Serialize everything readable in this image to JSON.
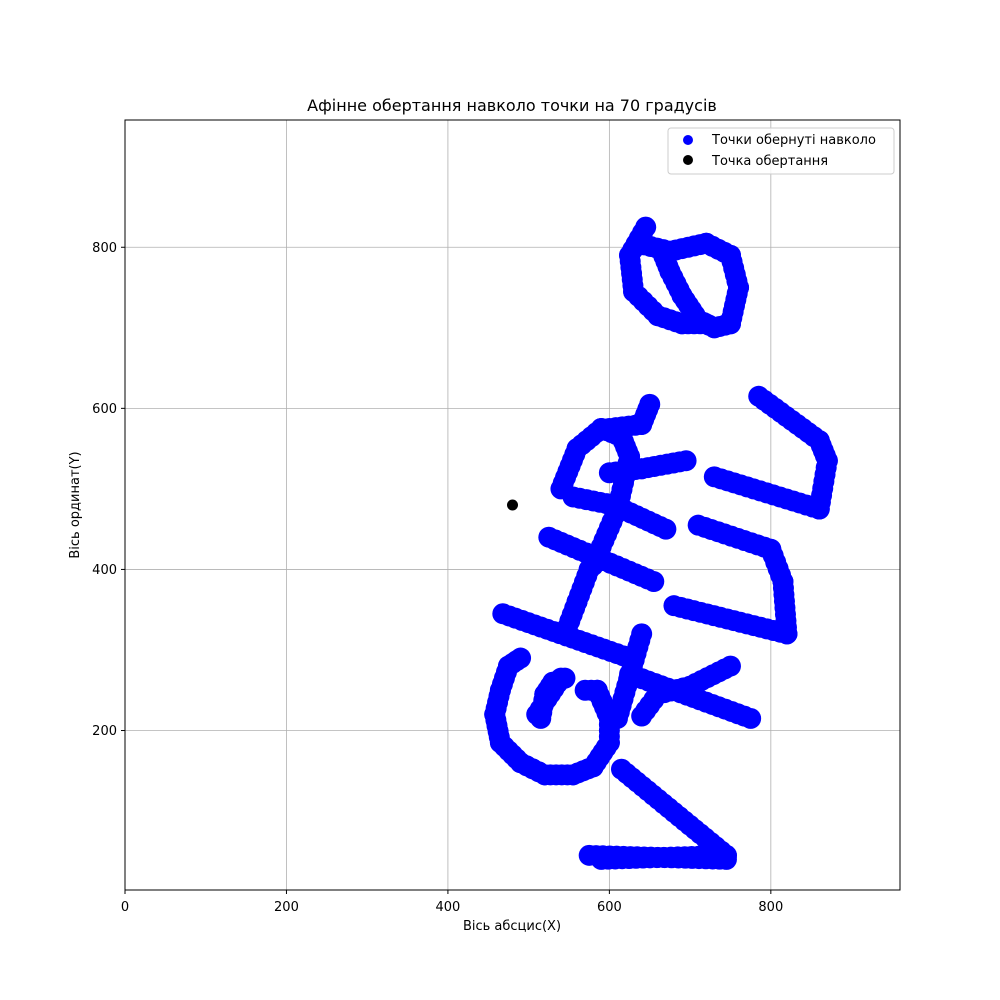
{
  "chart_data": {
    "type": "scatter",
    "title": "Афінне обертання навколо точки на 70 градусів",
    "xlabel": "Вісь абсцис(X)",
    "ylabel": "Вісь ординат(Y)",
    "xlim": [
      0,
      960
    ],
    "ylim": [
      2,
      958
    ],
    "xticks": [
      0,
      200,
      400,
      600,
      800
    ],
    "yticks": [
      200,
      400,
      600,
      800
    ],
    "grid": true,
    "legend_position": "top-right",
    "series": [
      {
        "name": "Точки обернуті навколо",
        "color": "#0000ff",
        "marker_radius_units": 13,
        "polylines": [
          [
            [
              745,
              45
            ],
            [
              615,
              152
            ]
          ],
          [
            [
              745,
              45
            ],
            [
              590,
              40
            ]
          ],
          [
            [
              575,
              45
            ],
            [
              745,
              40
            ]
          ],
          [
            [
              640,
              320
            ],
            [
              610,
              215
            ]
          ],
          [
            [
              625,
              270
            ],
            [
              775,
              215
            ]
          ],
          [
            [
              680,
              355
            ],
            [
              820,
              320
            ]
          ],
          [
            [
              820,
              320
            ],
            [
              815,
              385
            ]
          ],
          [
            [
              815,
              385
            ],
            [
              800,
              425
            ]
          ],
          [
            [
              800,
              425
            ],
            [
              710,
              455
            ]
          ],
          [
            [
              730,
              515
            ],
            [
              860,
              475
            ]
          ],
          [
            [
              860,
              475
            ],
            [
              870,
              535
            ]
          ],
          [
            [
              870,
              535
            ],
            [
              860,
              560
            ]
          ],
          [
            [
              860,
              560
            ],
            [
              785,
              615
            ]
          ],
          [
            [
              640,
              218
            ],
            [
              660,
              245
            ],
            [
              700,
              255
            ],
            [
              750,
              280
            ]
          ],
          [
            [
              635,
              805
            ],
            [
              675,
              795
            ],
            [
              720,
              805
            ],
            [
              750,
              790
            ],
            [
              760,
              750
            ],
            [
              750,
              705
            ],
            [
              730,
              700
            ],
            [
              710,
              710
            ],
            [
              690,
              740
            ],
            [
              675,
              770
            ],
            [
              665,
              795
            ]
          ],
          [
            [
              645,
              825
            ],
            [
              625,
              790
            ],
            [
              630,
              745
            ],
            [
              660,
              715
            ],
            [
              690,
              705
            ],
            [
              720,
              705
            ]
          ],
          [
            [
              490,
              290
            ],
            [
              475,
              280
            ],
            [
              465,
              250
            ],
            [
              458,
              220
            ],
            [
              465,
              185
            ],
            [
              490,
              160
            ],
            [
              520,
              145
            ],
            [
              555,
              145
            ],
            [
              580,
              155
            ],
            [
              600,
              185
            ],
            [
              600,
              215
            ],
            [
              585,
              250
            ],
            [
              570,
              250
            ]
          ],
          [
            [
              545,
              265
            ],
            [
              530,
              260
            ],
            [
              520,
              245
            ],
            [
              515,
              215
            ]
          ],
          [
            [
              540,
              265
            ],
            [
              510,
              220
            ]
          ],
          [
            [
              468,
              345
            ],
            [
              625,
              290
            ]
          ],
          [
            [
              525,
              440
            ],
            [
              655,
              385
            ]
          ],
          [
            [
              545,
              320
            ],
            [
              560,
              360
            ],
            [
              575,
              400
            ],
            [
              585,
              410
            ]
          ],
          [
            [
              540,
              500
            ],
            [
              560,
              550
            ],
            [
              590,
              575
            ],
            [
              615,
              565
            ],
            [
              625,
              540
            ],
            [
              610,
              475
            ],
            [
              580,
              405
            ]
          ],
          [
            [
              555,
              490
            ],
            [
              605,
              480
            ],
            [
              670,
              450
            ]
          ],
          [
            [
              600,
              520
            ],
            [
              640,
              525
            ],
            [
              695,
              535
            ]
          ],
          [
            [
              600,
              575
            ],
            [
              640,
              580
            ],
            [
              650,
              605
            ]
          ]
        ]
      },
      {
        "name": "Точка обертання",
        "color": "#000000",
        "points": [
          [
            480,
            480
          ]
        ]
      }
    ]
  }
}
